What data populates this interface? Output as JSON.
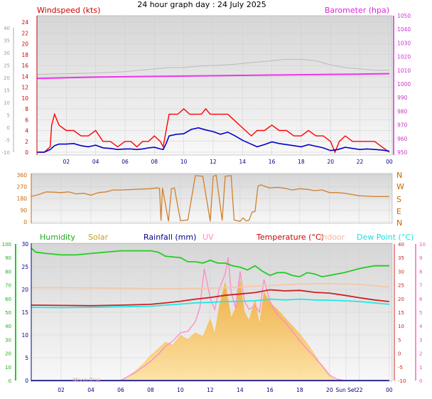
{
  "page": {
    "title": "24 hour graph day : 24 July 2025"
  },
  "colors": {
    "wind_speed": "#ff0000",
    "wind_avg": "#0000cc",
    "barometer": "#ee33ee",
    "barometer_secondary": "#bbbbbb",
    "direction": "#d08030",
    "humidity": "#22cc22",
    "solar": "#f6c050",
    "rainfall": "#000088",
    "uv": "#ff88cc",
    "temperature": "#cc2222",
    "indoor": "#f4c8a8",
    "dew_point": "#22e8e8",
    "x_tick": "#000080",
    "plot_bg": "#e8e8e8"
  },
  "chart_data": [
    {
      "id": "wind-baro",
      "type": "line",
      "title": "24 hour graph day : 24 July 2025",
      "legend": {
        "left": "Windspeed (kts)",
        "right": "Barometer (hpa)"
      },
      "x_ticks": [
        "02",
        "04",
        "06",
        "08",
        "10",
        "12",
        "14",
        "16",
        "18",
        "20",
        "22",
        "00"
      ],
      "x_tick_hours": [
        2,
        4,
        6,
        8,
        10,
        12,
        14,
        16,
        18,
        20,
        22,
        24
      ],
      "xlim": [
        0,
        24.2
      ],
      "y_left": {
        "ticks": [
          24,
          22,
          20,
          18,
          16,
          14,
          12,
          10,
          8,
          6,
          4,
          2,
          0
        ],
        "range": [
          0,
          24
        ]
      },
      "y_far_left": {
        "ticks": [
          40,
          35,
          30,
          25,
          20,
          15,
          10,
          5,
          0,
          -5,
          -10
        ],
        "range": [
          -10,
          40
        ]
      },
      "y_right": {
        "ticks": [
          1050,
          1040,
          1030,
          1020,
          1010,
          1000,
          990,
          980,
          970,
          960,
          950
        ],
        "range": [
          950,
          1050
        ]
      },
      "series": [
        {
          "name": "Windspeed",
          "axis": "left",
          "x": [
            0,
            0.5,
            0.9,
            1.0,
            1.2,
            1.5,
            2.0,
            2.5,
            3.0,
            3.5,
            4.0,
            4.5,
            5.0,
            5.5,
            6.0,
            6.4,
            6.8,
            7.2,
            7.6,
            8.0,
            8.4,
            8.6,
            8.8,
            9.0,
            9.3,
            9.6,
            10.0,
            10.4,
            10.8,
            11.2,
            11.5,
            11.8,
            12.2,
            12.6,
            13.0,
            13.4,
            13.8,
            14.2,
            14.6,
            15.0,
            15.5,
            16.0,
            16.5,
            17.0,
            17.5,
            18.0,
            18.5,
            19.0,
            19.5,
            20.0,
            20.3,
            20.6,
            21.0,
            21.5,
            22.0,
            22.5,
            23.0,
            23.5,
            24.0
          ],
          "values": [
            0,
            0,
            1,
            5,
            7,
            5,
            4,
            4,
            3,
            3,
            4,
            2,
            2,
            1,
            2,
            2,
            1,
            2,
            2,
            3,
            2,
            1,
            4,
            7,
            7,
            7,
            8,
            7,
            7,
            7,
            8,
            7,
            7,
            7,
            7,
            6,
            5,
            4,
            3,
            4,
            4,
            5,
            4,
            4,
            3,
            3,
            4,
            3,
            3,
            2,
            0,
            2,
            3,
            2,
            2,
            2,
            2,
            1,
            0
          ]
        },
        {
          "name": "Wind Average",
          "axis": "left",
          "x": [
            0,
            0.5,
            0.9,
            1.2,
            1.5,
            2.0,
            2.5,
            3.0,
            3.5,
            4.0,
            4.5,
            5.0,
            5.5,
            6.0,
            6.4,
            6.8,
            7.2,
            7.6,
            8.0,
            8.4,
            8.6,
            8.8,
            9.0,
            9.5,
            10.0,
            10.5,
            11.0,
            11.5,
            12.0,
            12.5,
            13.0,
            13.5,
            14.0,
            14.5,
            15.0,
            15.5,
            16.0,
            16.5,
            17.0,
            17.5,
            18.0,
            18.5,
            19.0,
            19.5,
            20.0,
            20.5,
            21.0,
            21.5,
            22.0,
            22.5,
            23.0,
            23.5,
            24.0
          ],
          "values": [
            0,
            0,
            0.5,
            1.2,
            1.5,
            1.5,
            1.6,
            1.2,
            1.0,
            1.3,
            0.8,
            0.7,
            0.5,
            0.6,
            0.6,
            0.5,
            0.6,
            0.8,
            0.9,
            0.6,
            0.5,
            1.6,
            3.0,
            3.3,
            3.4,
            4.2,
            4.5,
            4.1,
            3.8,
            3.3,
            3.7,
            3.0,
            2.2,
            1.6,
            1.0,
            1.4,
            1.9,
            1.6,
            1.4,
            1.2,
            1.0,
            1.4,
            1.1,
            0.8,
            0.3,
            0.5,
            0.9,
            0.7,
            0.5,
            0.6,
            0.5,
            0.4,
            0.2
          ]
        },
        {
          "name": "Barometer",
          "axis": "right",
          "x": [
            0,
            4,
            8,
            12,
            16,
            20,
            22,
            24
          ],
          "values": [
            1004,
            1005,
            1005.5,
            1006,
            1006.5,
            1007,
            1007.2,
            1007.5
          ]
        },
        {
          "name": "Barometer trace",
          "axis": "right",
          "x": [
            0,
            2,
            4,
            6,
            8,
            9,
            10,
            11,
            12,
            13,
            14,
            15,
            16,
            17,
            18,
            19,
            20,
            21,
            22,
            23,
            24
          ],
          "values": [
            1007,
            1007.5,
            1008,
            1009,
            1011,
            1012,
            1012,
            1013,
            1013.5,
            1014,
            1015,
            1016,
            1017,
            1018,
            1018,
            1017,
            1014,
            1012,
            1011,
            1010,
            1010
          ]
        }
      ]
    },
    {
      "id": "wind-direction",
      "type": "line",
      "y_left": {
        "ticks": [
          360,
          270,
          180,
          90,
          0
        ],
        "range": [
          0,
          360
        ]
      },
      "y_right": {
        "ticks": [
          "N",
          "W",
          "S",
          "E",
          "N"
        ]
      },
      "x_ticks": [],
      "series": [
        {
          "name": "Wind Direction",
          "x": [
            0,
            0.5,
            1.0,
            1.5,
            2.0,
            2.5,
            3.0,
            3.5,
            4.0,
            4.5,
            5.0,
            5.5,
            6.0,
            7.0,
            8.0,
            8.4,
            8.6,
            8.7,
            8.8,
            9.2,
            9.4,
            9.6,
            10.0,
            10.5,
            11.0,
            11.5,
            12.0,
            12.2,
            12.4,
            12.8,
            13.0,
            13.4,
            13.6,
            14.0,
            14.2,
            14.4,
            14.6,
            14.8,
            15.0,
            15.2,
            15.4,
            15.6,
            16.0,
            16.5,
            17.0,
            17.5,
            18.0,
            18.5,
            19.0,
            19.5,
            20.0,
            20.5,
            21.0,
            22.0,
            23.0,
            24.0
          ],
          "values": [
            195,
            210,
            230,
            228,
            225,
            230,
            215,
            220,
            205,
            225,
            230,
            245,
            245,
            250,
            255,
            260,
            258,
            10,
            260,
            5,
            255,
            260,
            10,
            15,
            355,
            350,
            5,
            350,
            358,
            10,
            350,
            355,
            15,
            5,
            30,
            8,
            12,
            75,
            80,
            275,
            285,
            275,
            260,
            265,
            258,
            245,
            255,
            250,
            240,
            245,
            225,
            225,
            220,
            200,
            195,
            195
          ]
        }
      ]
    },
    {
      "id": "temp-hum-solar",
      "type": "line",
      "legend": [
        "Humidity",
        "Solar",
        "Rainfall (mm)",
        "UV",
        "Temperature (°C)",
        "Indoor",
        "Dew Point (°C)"
      ],
      "x_ticks": [
        "02",
        "04",
        "06",
        "08",
        "10",
        "12",
        "14",
        "16",
        "18",
        "20",
        "Sun Set",
        "22",
        "00"
      ],
      "x_tick_hours": [
        2,
        4,
        6,
        8,
        10,
        12,
        14,
        16,
        18,
        20,
        21.1,
        22,
        24
      ],
      "extra_labels": [
        {
          "text": "Moon Rise",
          "hour": 2.8
        }
      ],
      "xlim": [
        0,
        24.2
      ],
      "y_humidity": {
        "ticks": [
          100,
          90,
          80,
          70,
          60,
          50,
          40,
          30,
          20,
          10,
          0
        ],
        "range": [
          0,
          100
        ]
      },
      "y_rain": {
        "ticks": [
          30,
          25,
          20,
          15,
          10,
          5,
          0
        ],
        "range": [
          0,
          30
        ]
      },
      "y_temp": {
        "ticks": [
          40,
          35,
          30,
          25,
          20,
          15,
          10,
          5,
          0,
          -5,
          -10
        ],
        "range": [
          -10,
          40
        ]
      },
      "y_uv": {
        "ticks": [
          10,
          9,
          8,
          7,
          6,
          5,
          4,
          3,
          2,
          1,
          0
        ],
        "range": [
          0,
          10
        ]
      },
      "series": [
        {
          "name": "Humidity",
          "axis": "humidity",
          "x": [
            0,
            0.3,
            1.0,
            2.0,
            3.0,
            4.0,
            5.0,
            6.0,
            7.0,
            8.0,
            8.5,
            9.0,
            10.0,
            10.5,
            11.0,
            11.5,
            12.0,
            12.5,
            13.0,
            13.5,
            14.0,
            14.5,
            15.0,
            15.5,
            16.0,
            16.5,
            17.0,
            17.5,
            18.0,
            18.5,
            19.0,
            19.5,
            20.0,
            20.5,
            21.0,
            22.0,
            23.0,
            24.0
          ],
          "values": [
            97,
            94,
            93,
            92,
            92,
            93,
            94,
            95,
            95,
            95,
            94,
            91,
            90,
            87,
            87,
            86,
            88,
            86,
            86,
            84,
            83,
            81,
            84,
            80,
            77,
            79,
            79,
            77,
            76,
            79,
            78,
            76,
            77,
            78,
            79,
            82,
            84,
            84
          ]
        },
        {
          "name": "Temperature",
          "axis": "temp",
          "x": [
            0,
            2,
            4,
            6,
            8,
            9,
            10,
            11,
            12,
            13,
            14,
            15,
            16,
            17,
            18,
            19,
            20,
            21,
            22,
            23,
            24
          ],
          "values": [
            17.6,
            17.5,
            17.4,
            17.6,
            17.9,
            18.4,
            19.0,
            19.8,
            20.4,
            21.2,
            21.7,
            22.2,
            23.2,
            22.8,
            23.0,
            22.3,
            22.0,
            21.2,
            20.3,
            19.5,
            18.9
          ]
        },
        {
          "name": "Indoor",
          "axis": "temp",
          "x": [
            0,
            2,
            4,
            6,
            8,
            10,
            12,
            14,
            16,
            18,
            20,
            22,
            24
          ],
          "values": [
            24.0,
            24.0,
            23.9,
            23.8,
            23.7,
            23.7,
            23.8,
            24.2,
            24.8,
            25.3,
            25.5,
            25.2,
            24.2
          ]
        },
        {
          "name": "Dew Point",
          "axis": "temp",
          "x": [
            0,
            2,
            4,
            6,
            8,
            9,
            10,
            11,
            12,
            13,
            14,
            15,
            16,
            17,
            18,
            19,
            20,
            21,
            22,
            23,
            24
          ],
          "values": [
            16.8,
            16.7,
            16.8,
            17.0,
            17.2,
            17.6,
            18.0,
            18.4,
            18.6,
            18.9,
            19.0,
            19.2,
            19.8,
            19.5,
            19.8,
            19.5,
            19.4,
            19.2,
            18.9,
            18.4,
            17.9
          ]
        },
        {
          "name": "Solar",
          "axis": "uv",
          "type": "area",
          "x": [
            6,
            6.5,
            7,
            7.5,
            8,
            8.5,
            9,
            9.5,
            10,
            10.5,
            11,
            11.5,
            12,
            12.3,
            12.6,
            13,
            13.4,
            13.7,
            14,
            14.3,
            14.6,
            15,
            15.3,
            15.6,
            16,
            16.5,
            17,
            17.5,
            18,
            18.5,
            19,
            19.5,
            20,
            20.4
          ],
          "values": [
            0,
            0.3,
            0.7,
            1.2,
            1.8,
            2.3,
            2.8,
            2.6,
            3.3,
            3.0,
            3.5,
            3.2,
            4.5,
            3.4,
            5.4,
            7.2,
            4.6,
            5.3,
            7.4,
            5.0,
            4.4,
            5.9,
            4.1,
            6.5,
            5.7,
            5.2,
            4.6,
            4.0,
            3.4,
            2.7,
            1.9,
            1.0,
            0.3,
            0
          ]
        },
        {
          "name": "UV",
          "axis": "uv",
          "x": [
            6,
            6.5,
            7,
            7.5,
            8,
            8.5,
            9,
            9.5,
            10,
            10.5,
            11,
            11.3,
            11.6,
            12,
            12.3,
            12.6,
            13,
            13.2,
            13.4,
            13.7,
            14,
            14.3,
            14.6,
            15,
            15.3,
            15.6,
            16,
            16.5,
            17,
            17.5,
            18,
            18.5,
            19,
            19.5,
            20,
            20.5,
            21
          ],
          "values": [
            0,
            0.3,
            0.6,
            1.0,
            1.4,
            1.9,
            2.5,
            2.9,
            3.5,
            3.6,
            4.3,
            5.3,
            8.2,
            6.0,
            5.2,
            6.7,
            7.8,
            9.0,
            6.5,
            5.3,
            8.0,
            5.8,
            5.2,
            5.5,
            5.0,
            7.4,
            5.8,
            4.8,
            4.3,
            3.6,
            2.9,
            2.3,
            1.7,
            1.1,
            0.4,
            0.1,
            0
          ]
        },
        {
          "name": "Rainfall",
          "axis": "rain",
          "x": [
            0,
            24
          ],
          "values": [
            0,
            0
          ]
        }
      ]
    }
  ]
}
